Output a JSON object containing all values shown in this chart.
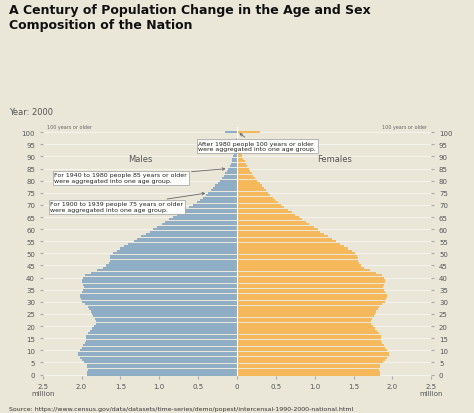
{
  "title": "A Century of Population Change in the Age and Sex\nComposition of the Nation",
  "subtitle": "Year: 2000",
  "source": "Source: https://www.census.gov/data/datasets/time-series/demo/popest/intercensal-1990-2000-national.html",
  "male_color": "#8FAEC5",
  "female_color": "#F5B95C",
  "background_color": "#EAE6D8",
  "plot_bg_color": "#EAE6D8",
  "males_label": "Males",
  "females_label": "Females",
  "annotation1": "After 1980 people 100 years or older\nwere aggregated into one age group.",
  "annotation2": "For 1940 to 1980 people 85 years or older\nwere aggregated into one age group.",
  "annotation3": "For 1900 to 1939 people 75 years or older\nwere aggregated into one age group.",
  "top_label": "100 years or older",
  "ages": [
    0,
    1,
    2,
    3,
    4,
    5,
    6,
    7,
    8,
    9,
    10,
    11,
    12,
    13,
    14,
    15,
    16,
    17,
    18,
    19,
    20,
    21,
    22,
    23,
    24,
    25,
    26,
    27,
    28,
    29,
    30,
    31,
    32,
    33,
    34,
    35,
    36,
    37,
    38,
    39,
    40,
    41,
    42,
    43,
    44,
    45,
    46,
    47,
    48,
    49,
    50,
    51,
    52,
    53,
    54,
    55,
    56,
    57,
    58,
    59,
    60,
    61,
    62,
    63,
    64,
    65,
    66,
    67,
    68,
    69,
    70,
    71,
    72,
    73,
    74,
    75,
    76,
    77,
    78,
    79,
    80,
    81,
    82,
    83,
    84,
    85,
    86,
    87,
    88,
    89,
    90,
    91,
    92,
    93,
    94,
    95,
    96,
    97,
    98,
    99,
    100
  ],
  "males": [
    1.93,
    1.93,
    1.92,
    1.93,
    1.93,
    1.97,
    2.0,
    2.02,
    2.04,
    2.04,
    2.02,
    2.0,
    1.98,
    1.95,
    1.94,
    1.94,
    1.94,
    1.92,
    1.89,
    1.86,
    1.84,
    1.82,
    1.81,
    1.83,
    1.85,
    1.87,
    1.88,
    1.9,
    1.92,
    1.96,
    2.0,
    2.01,
    2.02,
    2.02,
    2.0,
    1.98,
    1.97,
    1.98,
    2.0,
    2.0,
    1.98,
    1.95,
    1.88,
    1.8,
    1.73,
    1.68,
    1.65,
    1.64,
    1.64,
    1.63,
    1.6,
    1.55,
    1.5,
    1.45,
    1.4,
    1.33,
    1.28,
    1.23,
    1.17,
    1.12,
    1.08,
    1.03,
    0.97,
    0.92,
    0.87,
    0.82,
    0.77,
    0.72,
    0.67,
    0.62,
    0.57,
    0.52,
    0.48,
    0.44,
    0.4,
    0.37,
    0.34,
    0.31,
    0.28,
    0.25,
    0.22,
    0.19,
    0.17,
    0.15,
    0.13,
    0.11,
    0.09,
    0.08,
    0.07,
    0.06,
    0.05,
    0.04,
    0.03,
    0.02,
    0.02,
    0.01,
    0.01,
    0.01,
    0.0,
    0.0,
    0.15
  ],
  "females": [
    1.84,
    1.84,
    1.83,
    1.84,
    1.84,
    1.88,
    1.91,
    1.93,
    1.95,
    1.95,
    1.93,
    1.91,
    1.89,
    1.86,
    1.85,
    1.85,
    1.85,
    1.83,
    1.8,
    1.77,
    1.75,
    1.73,
    1.72,
    1.74,
    1.76,
    1.78,
    1.79,
    1.81,
    1.83,
    1.87,
    1.91,
    1.92,
    1.93,
    1.93,
    1.91,
    1.89,
    1.88,
    1.89,
    1.91,
    1.91,
    1.89,
    1.86,
    1.79,
    1.71,
    1.64,
    1.59,
    1.57,
    1.56,
    1.56,
    1.55,
    1.52,
    1.48,
    1.43,
    1.38,
    1.33,
    1.27,
    1.22,
    1.17,
    1.12,
    1.07,
    1.04,
    0.99,
    0.93,
    0.89,
    0.84,
    0.8,
    0.75,
    0.71,
    0.66,
    0.61,
    0.57,
    0.53,
    0.49,
    0.46,
    0.43,
    0.4,
    0.37,
    0.35,
    0.32,
    0.29,
    0.26,
    0.23,
    0.21,
    0.19,
    0.17,
    0.15,
    0.13,
    0.11,
    0.1,
    0.08,
    0.07,
    0.06,
    0.05,
    0.04,
    0.03,
    0.02,
    0.02,
    0.01,
    0.01,
    0.01,
    0.3
  ],
  "xlim": 2.5,
  "bar_height": 0.85,
  "title_fontsize": 9,
  "subtitle_fontsize": 6,
  "label_fontsize": 6,
  "tick_fontsize": 5,
  "annot_fontsize": 4.5,
  "source_fontsize": 4.5
}
